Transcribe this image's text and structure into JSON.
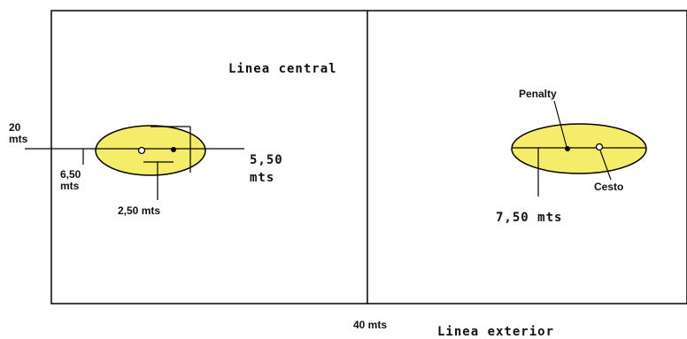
{
  "labels": {
    "center_line": "Linea central",
    "outer_line": "Linea exterior",
    "width": "20\nmts",
    "length": "40 mts",
    "left_6_50": "6,50\nmts",
    "left_2_50": "2,50 mts",
    "left_5_50": "5,50\nmts",
    "penalty": "Penalty",
    "basket": "Cesto",
    "right_7_50": "7,50 mts"
  },
  "colors": {
    "zone_fill": "#f5ec6a",
    "line": "#000000",
    "background": "#ffffff"
  }
}
